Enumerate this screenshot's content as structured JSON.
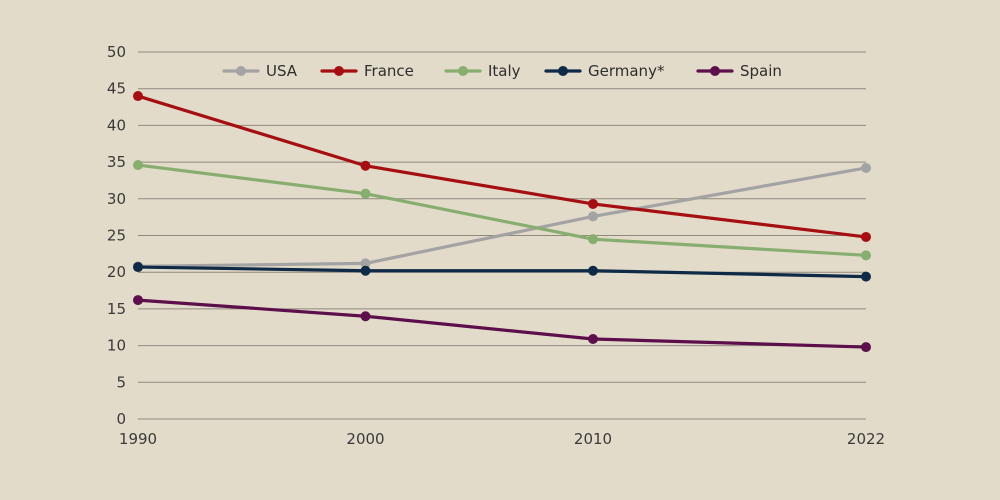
{
  "chart_data": {
    "type": "line",
    "title": "",
    "xlabel": "",
    "ylabel": "",
    "x": [
      1990,
      2000,
      2010,
      2022
    ],
    "x_tick_labels": [
      "1990",
      "2000",
      "2010",
      "2022"
    ],
    "ylim": [
      0,
      50
    ],
    "y_ticks": [
      0,
      5,
      10,
      15,
      20,
      25,
      30,
      35,
      40,
      45,
      50
    ],
    "grid": "horizontal",
    "legend_position": "top",
    "series": [
      {
        "name": "USA",
        "color": "#a3a3a3",
        "values": [
          20.8,
          21.2,
          27.6,
          34.2
        ]
      },
      {
        "name": "France",
        "color": "#a50f12",
        "values": [
          44.0,
          34.5,
          29.3,
          24.8
        ]
      },
      {
        "name": "Italy",
        "color": "#87ae6f",
        "values": [
          34.6,
          30.7,
          24.5,
          22.3
        ]
      },
      {
        "name": "Germany*",
        "color": "#0e2a47",
        "values": [
          20.7,
          20.2,
          20.2,
          19.4
        ]
      },
      {
        "name": "Spain",
        "color": "#5c0f4b",
        "values": [
          16.2,
          14.0,
          10.9,
          9.8
        ]
      }
    ]
  }
}
